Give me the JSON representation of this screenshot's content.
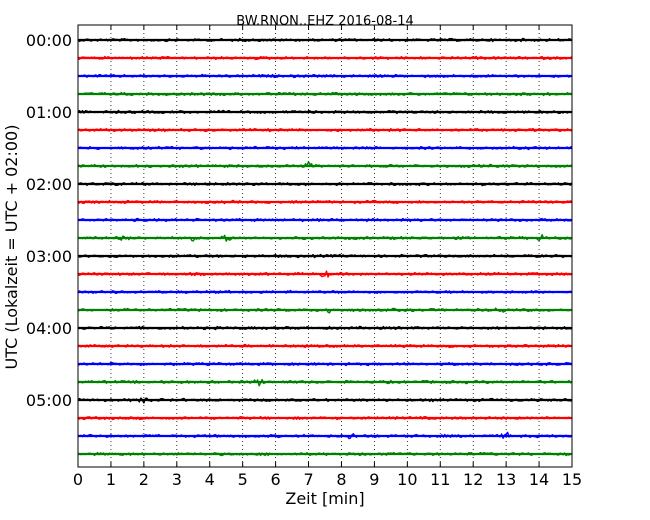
{
  "chart_data": {
    "type": "line",
    "title": "BW.RNON..EHZ 2016-08-14",
    "xlabel": "Zeit  [min]",
    "ylabel": "UTC (Lokalzeit = UTC + 02:00)",
    "xlim": [
      0,
      15
    ],
    "x_ticks": [
      "0",
      "1",
      "2",
      "3",
      "4",
      "5",
      "6",
      "7",
      "8",
      "9",
      "10",
      "11",
      "12",
      "13",
      "14",
      "15"
    ],
    "y_tick_labels": [
      "00:00",
      "01:00",
      "02:00",
      "03:00",
      "04:00",
      "05:00"
    ],
    "grid": "vertical dotted",
    "color_cycle": [
      "#000000",
      "#ff0000",
      "#0000ff",
      "#008000"
    ],
    "series": [
      {
        "start": "00:00",
        "color": "#000000",
        "events": []
      },
      {
        "start": "00:15",
        "color": "#ff0000",
        "events": []
      },
      {
        "start": "00:30",
        "color": "#0000ff",
        "events": []
      },
      {
        "start": "00:45",
        "color": "#008000",
        "events": []
      },
      {
        "start": "01:00",
        "color": "#000000",
        "events": []
      },
      {
        "start": "01:15",
        "color": "#ff0000",
        "events": []
      },
      {
        "start": "01:30",
        "color": "#0000ff",
        "events": []
      },
      {
        "start": "01:45",
        "color": "#008000",
        "events": [
          7.0
        ]
      },
      {
        "start": "02:00",
        "color": "#000000",
        "events": []
      },
      {
        "start": "02:15",
        "color": "#ff0000",
        "events": []
      },
      {
        "start": "02:30",
        "color": "#0000ff",
        "events": []
      },
      {
        "start": "02:45",
        "color": "#008000",
        "events": [
          1.4,
          3.4,
          4.5,
          14.1
        ]
      },
      {
        "start": "03:00",
        "color": "#000000",
        "events": []
      },
      {
        "start": "03:15",
        "color": "#ff0000",
        "events": [
          7.5
        ]
      },
      {
        "start": "03:30",
        "color": "#0000ff",
        "events": []
      },
      {
        "start": "03:45",
        "color": "#008000",
        "events": [
          7.6,
          12.8
        ]
      },
      {
        "start": "04:00",
        "color": "#000000",
        "events": []
      },
      {
        "start": "04:15",
        "color": "#ff0000",
        "events": []
      },
      {
        "start": "04:30",
        "color": "#0000ff",
        "events": []
      },
      {
        "start": "04:45",
        "color": "#008000",
        "events": [
          5.5
        ]
      },
      {
        "start": "05:00",
        "color": "#000000",
        "events": [
          2.0
        ]
      },
      {
        "start": "05:15",
        "color": "#ff0000",
        "events": []
      },
      {
        "start": "05:30",
        "color": "#0000ff",
        "events": [
          8.3,
          13.0
        ]
      },
      {
        "start": "05:45",
        "color": "#008000",
        "events": []
      }
    ]
  }
}
